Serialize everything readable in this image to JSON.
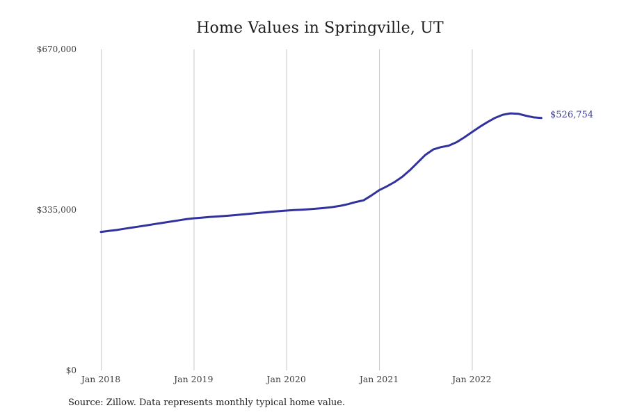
{
  "chart_data": {
    "type": "line",
    "title": "Home Values in Springville, UT",
    "series_name": "Monthly typical home value",
    "x": [
      "2018-01",
      "2018-02",
      "2018-03",
      "2018-04",
      "2018-05",
      "2018-06",
      "2018-07",
      "2018-08",
      "2018-09",
      "2018-10",
      "2018-11",
      "2018-12",
      "2019-01",
      "2019-02",
      "2019-03",
      "2019-04",
      "2019-05",
      "2019-06",
      "2019-07",
      "2019-08",
      "2019-09",
      "2019-10",
      "2019-11",
      "2019-12",
      "2020-01",
      "2020-02",
      "2020-03",
      "2020-04",
      "2020-05",
      "2020-06",
      "2020-07",
      "2020-08",
      "2020-09",
      "2020-10",
      "2020-11",
      "2020-12",
      "2021-01",
      "2021-02",
      "2021-03",
      "2021-04",
      "2021-05",
      "2021-06",
      "2021-07",
      "2021-08",
      "2021-09",
      "2021-10",
      "2021-11",
      "2021-12",
      "2022-01",
      "2022-02",
      "2022-03",
      "2022-04",
      "2022-05",
      "2022-06",
      "2022-07",
      "2022-08",
      "2022-09",
      "2022-10"
    ],
    "values": [
      289000,
      291000,
      293000,
      295500,
      298000,
      300500,
      303000,
      305500,
      308000,
      310500,
      313000,
      315500,
      317500,
      318800,
      320000,
      321200,
      322400,
      323600,
      325000,
      326500,
      328000,
      329500,
      331000,
      332300,
      333500,
      334500,
      335500,
      336500,
      337800,
      339200,
      341000,
      343500,
      347000,
      351500,
      355000,
      365000,
      376000,
      384000,
      393000,
      404000,
      418000,
      434000,
      450000,
      461000,
      466000,
      469000,
      476000,
      486000,
      497000,
      508000,
      518000,
      527000,
      533500,
      536500,
      535500,
      531500,
      528000,
      526754
    ],
    "x_tick_labels": [
      "Jan 2018",
      "Jan 2019",
      "Jan 2020",
      "Jan 2021",
      "Jan 2022"
    ],
    "y_tick_labels": [
      "$670,000",
      "$335,000",
      "$0"
    ],
    "ylim": [
      0,
      670000
    ],
    "end_label": "$526,754",
    "end_value": 526754,
    "line_color": "#32329f",
    "annotation_color": "#3b3b8f",
    "grid": "vertical-only",
    "legend": "none"
  },
  "notes": {
    "source": "Source: Zillow. Data represents monthly typical home value."
  }
}
